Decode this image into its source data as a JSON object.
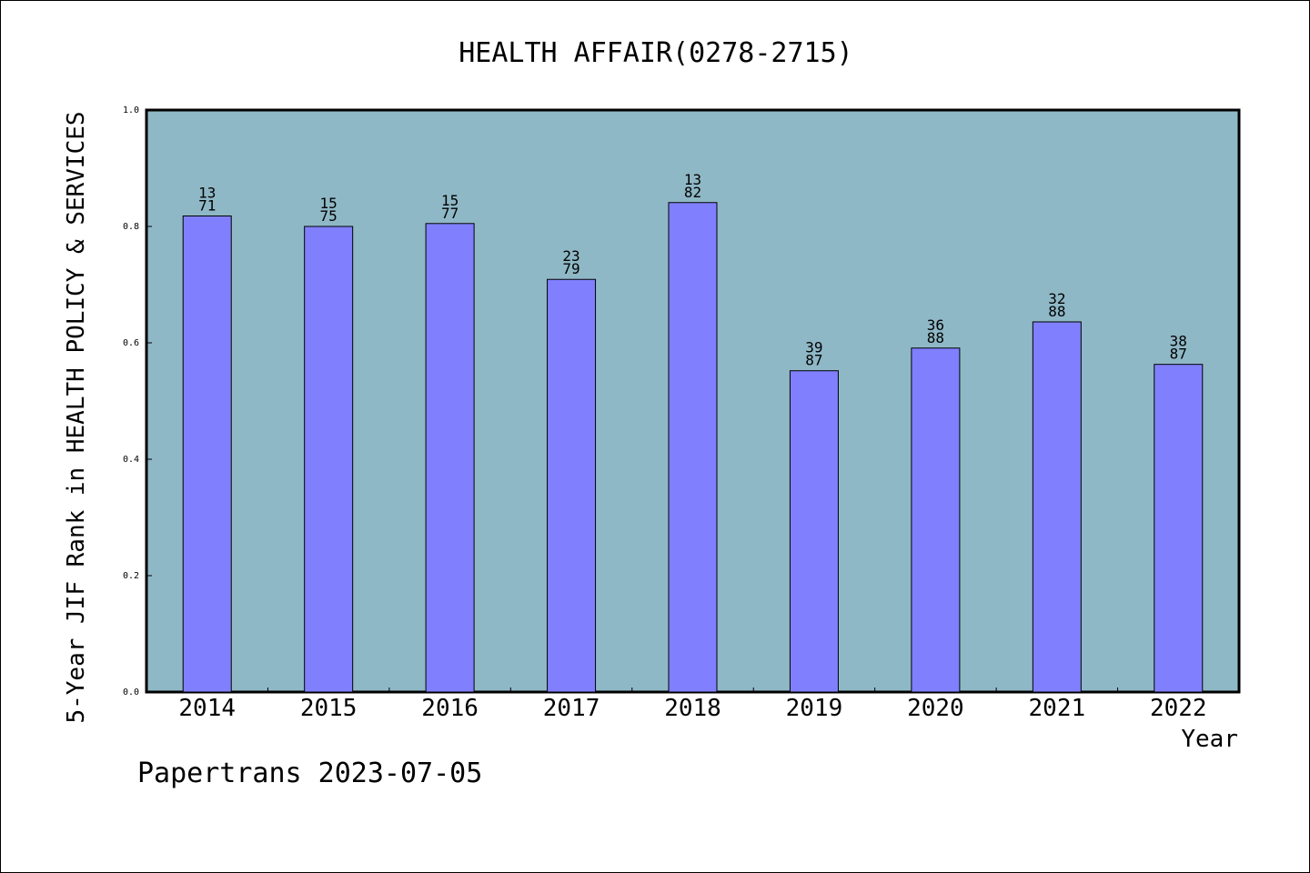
{
  "chart_data": {
    "type": "bar",
    "title": "HEALTH AFFAIR(0278-2715)",
    "xlabel": "Year",
    "ylabel": "5-Year JIF Rank in HEALTH POLICY & SERVICES",
    "categories": [
      "2014",
      "2015",
      "2016",
      "2017",
      "2018",
      "2019",
      "2020",
      "2021",
      "2022"
    ],
    "values": [
      0.818,
      0.8,
      0.805,
      0.709,
      0.841,
      0.552,
      0.591,
      0.636,
      0.563
    ],
    "bar_labels": [
      [
        "13",
        "71"
      ],
      [
        "15",
        "75"
      ],
      [
        "15",
        "77"
      ],
      [
        "23",
        "79"
      ],
      [
        "13",
        "82"
      ],
      [
        "39",
        "87"
      ],
      [
        "36",
        "88"
      ],
      [
        "32",
        "88"
      ],
      [
        "38",
        "87"
      ]
    ],
    "ylim": [
      0,
      1.0
    ],
    "yticks": [
      "0.0",
      "0.2",
      "0.4",
      "0.6",
      "0.8",
      "1.0"
    ],
    "grid": false,
    "colors": {
      "plot_background": "#8fb8c6",
      "bar_fill": "#8080ff",
      "bar_stroke": "#000000"
    }
  },
  "footer": "Papertrans 2023-07-05"
}
